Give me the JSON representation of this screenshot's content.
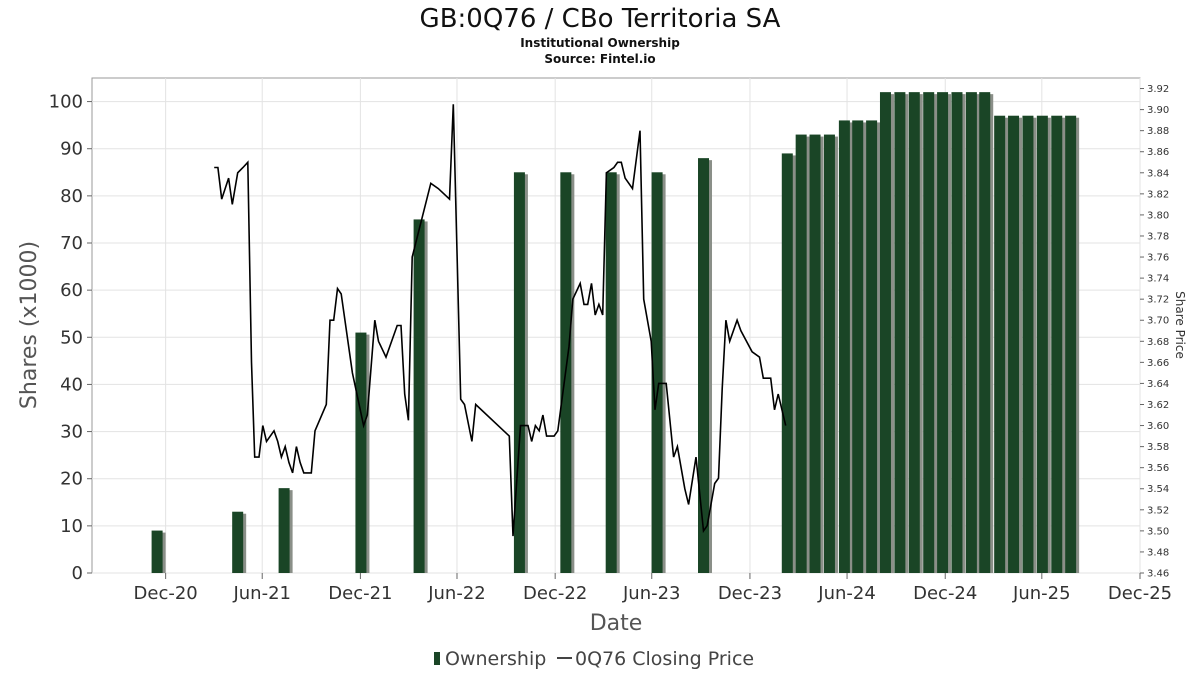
{
  "chart_data": {
    "type": "bar",
    "title": "GB:0Q76 / CBo Territoria SA",
    "subtitle": "Institutional Ownership",
    "source": "Source: Fintel.io",
    "xlabel": "Date",
    "ylabel": "Shares (x1000)",
    "ylabel_right": "Share Price",
    "ylim": [
      0,
      105
    ],
    "ylim_right": [
      3.46,
      3.93
    ],
    "yticks": [
      "0",
      "10",
      "20",
      "30",
      "40",
      "50",
      "60",
      "70",
      "80",
      "90",
      "100"
    ],
    "yticks_right": [
      "3.46",
      "3.48",
      "3.50",
      "3.52",
      "3.54",
      "3.56",
      "3.58",
      "3.60",
      "3.62",
      "3.64",
      "3.66",
      "3.68",
      "3.70",
      "3.72",
      "3.74",
      "3.76",
      "3.78",
      "3.80",
      "3.82",
      "3.84",
      "3.86",
      "3.88",
      "3.90",
      "3.92"
    ],
    "xticks": [
      {
        "label": "Dec-20",
        "date": "2020-12-31"
      },
      {
        "label": "Jun-21",
        "date": "2021-06-30"
      },
      {
        "label": "Dec-21",
        "date": "2021-12-31"
      },
      {
        "label": "Jun-22",
        "date": "2022-06-30"
      },
      {
        "label": "Dec-22",
        "date": "2022-12-31"
      },
      {
        "label": "Jun-23",
        "date": "2023-06-30"
      },
      {
        "label": "Dec-23",
        "date": "2023-12-31"
      },
      {
        "label": "Jun-24",
        "date": "2024-06-30"
      },
      {
        "label": "Dec-24",
        "date": "2024-12-31"
      },
      {
        "label": "Jun-25",
        "date": "2025-06-30"
      },
      {
        "label": "Dec-25",
        "date": "2025-12-31"
      }
    ],
    "xrange": [
      "2020-08-15",
      "2025-12-31"
    ],
    "grid": true,
    "legend_position": "bottom",
    "series": [
      {
        "name": "Ownership",
        "type": "bar",
        "color": "#1a4526",
        "points": [
          {
            "date": "2020-12-15",
            "value": 9
          },
          {
            "date": "2021-05-15",
            "value": 13
          },
          {
            "date": "2021-08-10",
            "value": 18
          },
          {
            "date": "2022-01-01",
            "value": 51
          },
          {
            "date": "2022-04-20",
            "value": 75
          },
          {
            "date": "2022-10-25",
            "value": 85
          },
          {
            "date": "2023-01-20",
            "value": 85
          },
          {
            "date": "2023-04-15",
            "value": 85
          },
          {
            "date": "2023-07-10",
            "value": 85
          },
          {
            "date": "2023-10-05",
            "value": 88
          },
          {
            "date": "2024-03-10",
            "value": 89
          },
          {
            "date": "2024-04-05",
            "value": 93
          },
          {
            "date": "2024-05-01",
            "value": 93
          },
          {
            "date": "2024-05-28",
            "value": 93
          },
          {
            "date": "2024-06-25",
            "value": 96
          },
          {
            "date": "2024-07-20",
            "value": 96
          },
          {
            "date": "2024-08-15",
            "value": 96
          },
          {
            "date": "2024-09-10",
            "value": 102
          },
          {
            "date": "2024-10-07",
            "value": 102
          },
          {
            "date": "2024-11-03",
            "value": 102
          },
          {
            "date": "2024-11-30",
            "value": 102
          },
          {
            "date": "2024-12-26",
            "value": 102
          },
          {
            "date": "2025-01-22",
            "value": 102
          },
          {
            "date": "2025-02-18",
            "value": 102
          },
          {
            "date": "2025-03-15",
            "value": 102
          },
          {
            "date": "2025-04-12",
            "value": 97
          },
          {
            "date": "2025-05-08",
            "value": 97
          },
          {
            "date": "2025-06-04",
            "value": 97
          },
          {
            "date": "2025-07-01",
            "value": 97
          },
          {
            "date": "2025-07-28",
            "value": 97
          },
          {
            "date": "2025-08-23",
            "value": 97
          }
        ]
      },
      {
        "name": "0Q76 Closing Price",
        "type": "line",
        "color": "#000000",
        "points": [
          {
            "date": "2021-04-01",
            "value": 3.845
          },
          {
            "date": "2021-04-08",
            "value": 3.845
          },
          {
            "date": "2021-04-15",
            "value": 3.815
          },
          {
            "date": "2021-04-28",
            "value": 3.835
          },
          {
            "date": "2021-05-05",
            "value": 3.81
          },
          {
            "date": "2021-05-15",
            "value": 3.84
          },
          {
            "date": "2021-05-25",
            "value": 3.845
          },
          {
            "date": "2021-06-03",
            "value": 3.85
          },
          {
            "date": "2021-06-10",
            "value": 3.66
          },
          {
            "date": "2021-06-16",
            "value": 3.57
          },
          {
            "date": "2021-06-24",
            "value": 3.57
          },
          {
            "date": "2021-07-01",
            "value": 3.6
          },
          {
            "date": "2021-07-08",
            "value": 3.585
          },
          {
            "date": "2021-07-22",
            "value": 3.595
          },
          {
            "date": "2021-07-29",
            "value": 3.585
          },
          {
            "date": "2021-08-05",
            "value": 3.57
          },
          {
            "date": "2021-08-12",
            "value": 3.58
          },
          {
            "date": "2021-08-19",
            "value": 3.565
          },
          {
            "date": "2021-08-26",
            "value": 3.555
          },
          {
            "date": "2021-09-02",
            "value": 3.58
          },
          {
            "date": "2021-09-09",
            "value": 3.565
          },
          {
            "date": "2021-09-16",
            "value": 3.555
          },
          {
            "date": "2021-09-30",
            "value": 3.555
          },
          {
            "date": "2021-10-07",
            "value": 3.595
          },
          {
            "date": "2021-10-28",
            "value": 3.62
          },
          {
            "date": "2021-11-04",
            "value": 3.7
          },
          {
            "date": "2021-11-11",
            "value": 3.7
          },
          {
            "date": "2021-11-18",
            "value": 3.73
          },
          {
            "date": "2021-11-25",
            "value": 3.725
          },
          {
            "date": "2021-12-16",
            "value": 3.65
          },
          {
            "date": "2022-01-06",
            "value": 3.6
          },
          {
            "date": "2022-01-13",
            "value": 3.61
          },
          {
            "date": "2022-01-27",
            "value": 3.7
          },
          {
            "date": "2022-02-03",
            "value": 3.68
          },
          {
            "date": "2022-02-17",
            "value": 3.665
          },
          {
            "date": "2022-03-10",
            "value": 3.695
          },
          {
            "date": "2022-03-17",
            "value": 3.695
          },
          {
            "date": "2022-03-24",
            "value": 3.63
          },
          {
            "date": "2022-03-31",
            "value": 3.605
          },
          {
            "date": "2022-04-07",
            "value": 3.76
          },
          {
            "date": "2022-05-12",
            "value": 3.83
          },
          {
            "date": "2022-05-26",
            "value": 3.825
          },
          {
            "date": "2022-06-16",
            "value": 3.815
          },
          {
            "date": "2022-06-23",
            "value": 3.905
          },
          {
            "date": "2022-07-07",
            "value": 3.625
          },
          {
            "date": "2022-07-14",
            "value": 3.62
          },
          {
            "date": "2022-07-28",
            "value": 3.585
          },
          {
            "date": "2022-08-04",
            "value": 3.62
          },
          {
            "date": "2022-10-06",
            "value": 3.59
          },
          {
            "date": "2022-10-13",
            "value": 3.495
          },
          {
            "date": "2022-10-27",
            "value": 3.6
          },
          {
            "date": "2022-11-10",
            "value": 3.6
          },
          {
            "date": "2022-11-17",
            "value": 3.585
          },
          {
            "date": "2022-11-24",
            "value": 3.6
          },
          {
            "date": "2022-12-01",
            "value": 3.595
          },
          {
            "date": "2022-12-08",
            "value": 3.61
          },
          {
            "date": "2022-12-15",
            "value": 3.59
          },
          {
            "date": "2022-12-29",
            "value": 3.59
          },
          {
            "date": "2023-01-05",
            "value": 3.595
          },
          {
            "date": "2023-01-26",
            "value": 3.675
          },
          {
            "date": "2023-02-02",
            "value": 3.72
          },
          {
            "date": "2023-02-16",
            "value": 3.735
          },
          {
            "date": "2023-02-23",
            "value": 3.715
          },
          {
            "date": "2023-03-02",
            "value": 3.715
          },
          {
            "date": "2023-03-09",
            "value": 3.735
          },
          {
            "date": "2023-03-16",
            "value": 3.705
          },
          {
            "date": "2023-03-23",
            "value": 3.715
          },
          {
            "date": "2023-03-30",
            "value": 3.705
          },
          {
            "date": "2023-04-06",
            "value": 3.84
          },
          {
            "date": "2023-04-20",
            "value": 3.845
          },
          {
            "date": "2023-04-27",
            "value": 3.85
          },
          {
            "date": "2023-05-04",
            "value": 3.85
          },
          {
            "date": "2023-05-11",
            "value": 3.835
          },
          {
            "date": "2023-05-25",
            "value": 3.825
          },
          {
            "date": "2023-06-08",
            "value": 3.88
          },
          {
            "date": "2023-06-15",
            "value": 3.72
          },
          {
            "date": "2023-06-29",
            "value": 3.68
          },
          {
            "date": "2023-07-06",
            "value": 3.615
          },
          {
            "date": "2023-07-13",
            "value": 3.64
          },
          {
            "date": "2023-07-27",
            "value": 3.64
          },
          {
            "date": "2023-08-10",
            "value": 3.57
          },
          {
            "date": "2023-08-17",
            "value": 3.58
          },
          {
            "date": "2023-08-31",
            "value": 3.54
          },
          {
            "date": "2023-09-07",
            "value": 3.525
          },
          {
            "date": "2023-09-21",
            "value": 3.57
          },
          {
            "date": "2023-10-05",
            "value": 3.5
          },
          {
            "date": "2023-10-12",
            "value": 3.505
          },
          {
            "date": "2023-10-26",
            "value": 3.545
          },
          {
            "date": "2023-11-02",
            "value": 3.55
          },
          {
            "date": "2023-11-09",
            "value": 3.635
          },
          {
            "date": "2023-11-16",
            "value": 3.7
          },
          {
            "date": "2023-11-23",
            "value": 3.68
          },
          {
            "date": "2023-12-07",
            "value": 3.7
          },
          {
            "date": "2023-12-14",
            "value": 3.69
          },
          {
            "date": "2024-01-04",
            "value": 3.67
          },
          {
            "date": "2024-01-18",
            "value": 3.665
          },
          {
            "date": "2024-01-25",
            "value": 3.645
          },
          {
            "date": "2024-02-08",
            "value": 3.645
          },
          {
            "date": "2024-02-15",
            "value": 3.615
          },
          {
            "date": "2024-02-22",
            "value": 3.63
          },
          {
            "date": "2024-03-07",
            "value": 3.6
          }
        ]
      }
    ]
  },
  "legend": {
    "ownership_label": "Ownership",
    "price_label": "0Q76 Closing Price"
  }
}
